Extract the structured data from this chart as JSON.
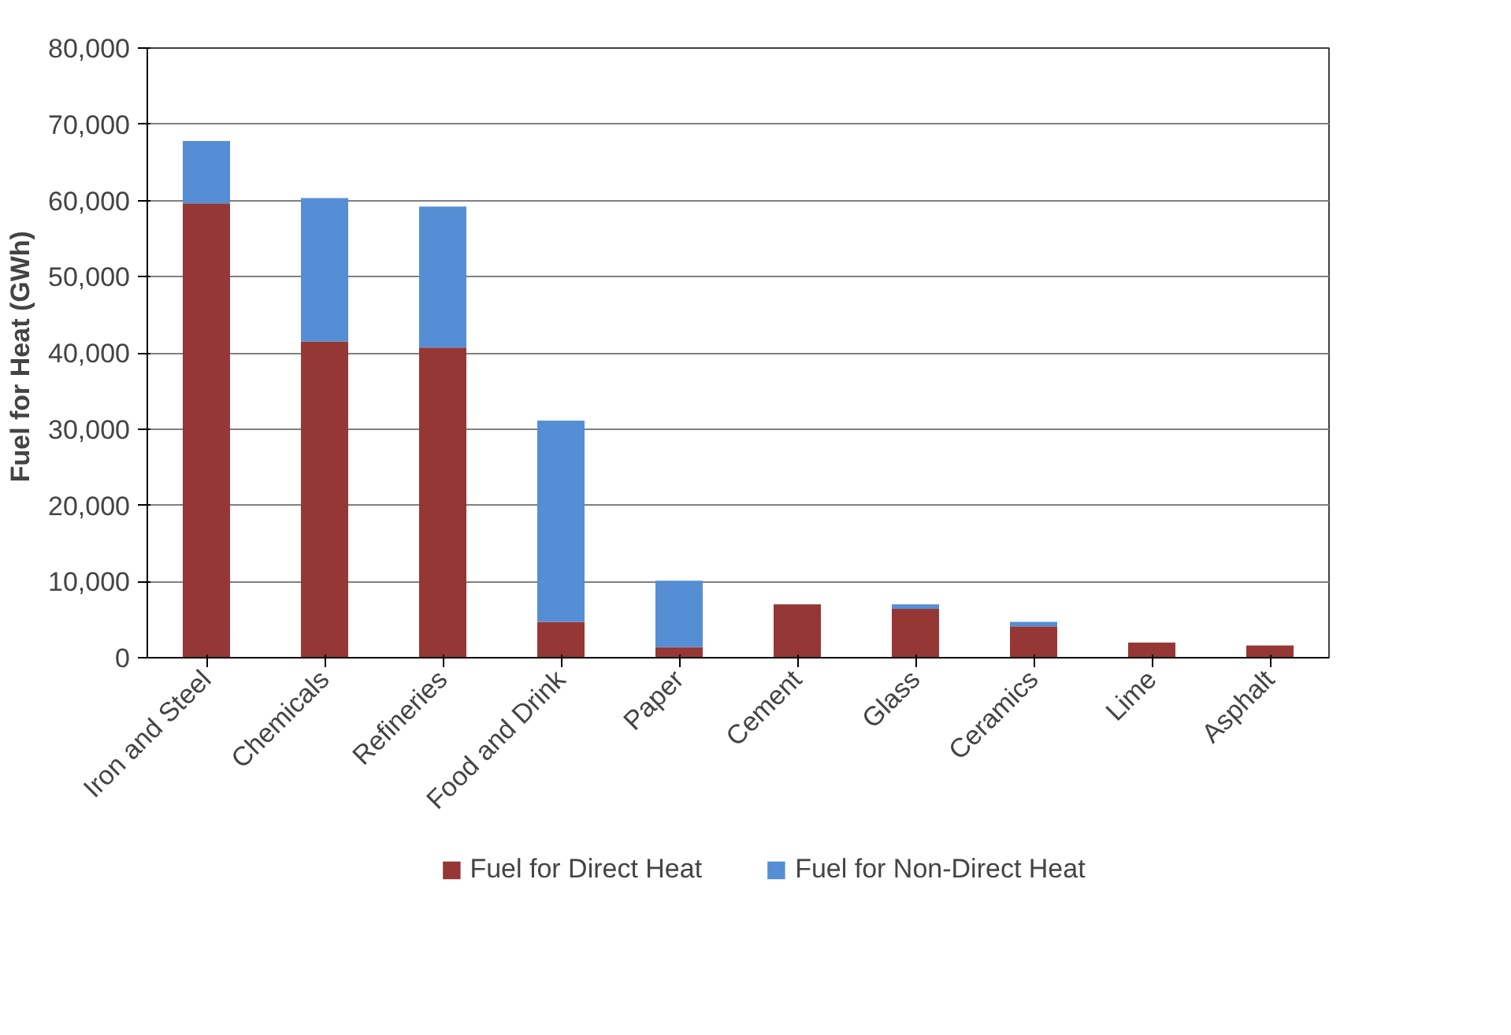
{
  "chart_data": {
    "type": "bar",
    "ylabel": "Fuel for Heat  (GWh)",
    "stacked": true,
    "categories": [
      "Iron and Steel",
      "Chemicals",
      "Refineries",
      "Food and Drink",
      "Paper",
      "Cement",
      "Glass",
      "Ceramics",
      "Lime",
      "Asphalt"
    ],
    "series": [
      {
        "name": "Fuel for Direct Heat",
        "color": "#953735",
        "values": [
          59600,
          41500,
          40700,
          4700,
          1400,
          7000,
          6400,
          4100,
          2000,
          1600
        ]
      },
      {
        "name": "Fuel for Non-Direct Heat",
        "color": "#558ed5",
        "values": [
          8200,
          18800,
          18500,
          26400,
          8700,
          0,
          600,
          600,
          0,
          0
        ]
      }
    ],
    "ylim": [
      0,
      80000
    ],
    "yticks": [
      {
        "value": 0,
        "label": "0"
      },
      {
        "value": 10000,
        "label": "10,000"
      },
      {
        "value": 20000,
        "label": "20,000"
      },
      {
        "value": 30000,
        "label": "30,000"
      },
      {
        "value": 40000,
        "label": "40,000"
      },
      {
        "value": 50000,
        "label": "50,000"
      },
      {
        "value": 60000,
        "label": "60,000"
      },
      {
        "value": 70000,
        "label": "70,000"
      },
      {
        "value": 80000,
        "label": "80,000"
      }
    ],
    "grid": "y",
    "legend": "bottom"
  }
}
